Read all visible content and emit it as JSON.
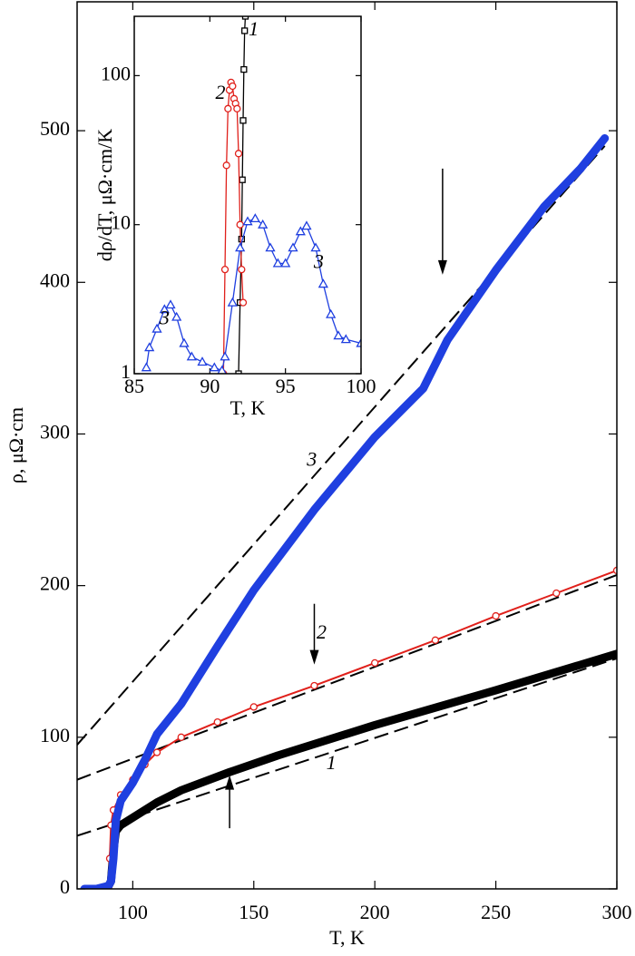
{
  "chart_data": [
    {
      "type": "line",
      "xlabel": "T, K",
      "ylabel": "ρ, μΩ·cm",
      "xlim": [
        77,
        300
      ],
      "ylim": [
        0,
        585
      ],
      "xticks": [
        100,
        150,
        200,
        250,
        300
      ],
      "yticks": [
        0,
        100,
        200,
        300,
        400,
        500
      ],
      "series": [
        {
          "color": "#000000",
          "x": [
            88,
            90,
            91,
            92,
            93,
            95,
            100,
            110,
            120,
            140,
            160,
            200,
            250,
            300
          ],
          "values": [
            0,
            2,
            5,
            25,
            38,
            42,
            47,
            57,
            65,
            77,
            88,
            108,
            131,
            155
          ]
        },
        {
          "color": "#e0201b",
          "marker": "circle",
          "x": [
            88,
            90,
            90.5,
            91,
            92,
            95,
            100,
            105,
            110,
            120,
            135,
            150,
            175,
            200,
            225,
            250,
            275,
            300
          ],
          "values": [
            0,
            1,
            20,
            42,
            52,
            62,
            72,
            82,
            90,
            100,
            110,
            120,
            134,
            149,
            164,
            180,
            195,
            210
          ]
        },
        {
          "color": "#1f3fe0",
          "x": [
            80,
            85,
            90,
            91,
            92,
            93,
            95,
            100,
            105,
            110,
            120,
            135,
            150,
            175,
            200,
            220,
            230,
            250,
            270,
            285,
            295
          ],
          "values": [
            0,
            0,
            2,
            5,
            20,
            45,
            58,
            70,
            85,
            102,
            122,
            160,
            197,
            250,
            298,
            330,
            362,
            408,
            450,
            475,
            495
          ]
        }
      ],
      "fit_lines": [
        {
          "x": [
            77,
            300
          ],
          "values": [
            35,
            152
          ]
        },
        {
          "x": [
            77,
            300
          ],
          "values": [
            72,
            207
          ]
        },
        {
          "x": [
            77,
            295
          ],
          "values": [
            95,
            490
          ]
        }
      ],
      "arrows": [
        {
          "x": 140,
          "from": 40,
          "to": 75
        },
        {
          "x": 175,
          "from": 188,
          "to": 148
        },
        {
          "x": 228,
          "from": 475,
          "to": 405
        }
      ],
      "annotations": [
        {
          "text": "1",
          "x": 182,
          "y": 82
        },
        {
          "text": "2",
          "x": 178,
          "y": 168
        },
        {
          "text": "3",
          "x": 174,
          "y": 282
        }
      ]
    },
    {
      "type": "line",
      "log_y": true,
      "xlabel": "T, K",
      "ylabel": "dρ/dT, μΩ·cm/K",
      "xlim": [
        85,
        100
      ],
      "ylim": [
        1,
        250
      ],
      "xticks": [
        85,
        90,
        95,
        100
      ],
      "yticks": [
        1,
        10,
        100
      ],
      "series": [
        {
          "color": "#000000",
          "marker": "square",
          "x": [
            91.9,
            92.0,
            92.1,
            92.15,
            92.2,
            92.25,
            92.3,
            92.35
          ],
          "values": [
            1,
            3,
            8,
            20,
            50,
            110,
            200,
            250
          ]
        },
        {
          "color": "#e0201b",
          "marker": "circle",
          "x": [
            90.9,
            91.0,
            91.1,
            91.2,
            91.3,
            91.4,
            91.5,
            91.6,
            91.7,
            91.8,
            91.9,
            92.0,
            92.1,
            92.2
          ],
          "values": [
            1,
            5,
            25,
            60,
            80,
            90,
            85,
            70,
            65,
            60,
            30,
            10,
            5,
            3
          ]
        },
        {
          "color": "#1f3fe0",
          "marker": "triangle",
          "x": [
            85.8,
            86,
            86.5,
            87,
            87.4,
            87.8,
            88.3,
            88.8,
            89.5,
            90.3,
            90.8,
            91,
            91.5,
            92,
            92.5,
            93,
            93.5,
            94,
            94.5,
            95,
            95.5,
            96,
            96.4,
            97,
            97.5,
            98,
            98.5,
            99,
            100
          ],
          "values": [
            1.1,
            1.5,
            2,
            2.7,
            2.9,
            2.4,
            1.6,
            1.3,
            1.2,
            1.1,
            1.05,
            1.3,
            3,
            7,
            10.5,
            11,
            10,
            7,
            5.5,
            5.5,
            7,
            9,
            9.8,
            7,
            4,
            2.5,
            1.8,
            1.7,
            1.6
          ]
        }
      ],
      "annotations": [
        {
          "text": "1",
          "x": 92.9,
          "y": 200
        },
        {
          "text": "2",
          "x": 90.7,
          "y": 75
        },
        {
          "text": "3",
          "x": 87,
          "y": 2.3
        },
        {
          "text": "3",
          "x": 97.2,
          "y": 5.5
        }
      ]
    }
  ]
}
